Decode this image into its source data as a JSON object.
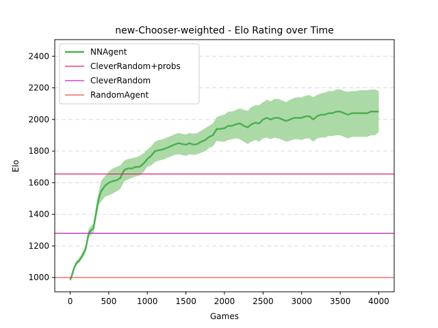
{
  "chart_data": {
    "type": "line",
    "title": "new-Chooser-weighted - Elo Rating over Time",
    "xlabel": "Games",
    "ylabel": "Elo",
    "xlim": [
      -200,
      4200
    ],
    "ylim": [
      910,
      2505
    ],
    "xticks": [
      0,
      500,
      1000,
      1500,
      2000,
      2500,
      3000,
      3500,
      4000
    ],
    "yticks": [
      1000,
      1200,
      1400,
      1600,
      1800,
      2000,
      2200,
      2400
    ],
    "grid": {
      "y": true,
      "x": false,
      "style": "dashed"
    },
    "legend_position": "top-left",
    "series": [
      {
        "name": "NNAgent",
        "color": "#4caf50",
        "band_color": "#a8d8a2",
        "x": [
          0,
          20,
          50,
          80,
          120,
          160,
          200,
          240,
          270,
          300,
          340,
          370,
          400,
          450,
          500,
          550,
          600,
          650,
          700,
          750,
          800,
          850,
          900,
          950,
          1000,
          1050,
          1100,
          1150,
          1200,
          1250,
          1300,
          1350,
          1400,
          1450,
          1500,
          1550,
          1600,
          1650,
          1700,
          1750,
          1800,
          1850,
          1900,
          1950,
          2000,
          2050,
          2100,
          2150,
          2200,
          2250,
          2300,
          2350,
          2400,
          2450,
          2500,
          2550,
          2600,
          2650,
          2700,
          2750,
          2800,
          2850,
          2900,
          2950,
          3000,
          3050,
          3100,
          3150,
          3200,
          3250,
          3300,
          3350,
          3400,
          3450,
          3500,
          3550,
          3600,
          3650,
          3700,
          3750,
          3800,
          3850,
          3900,
          3950,
          4000
        ],
        "y": [
          985,
          1010,
          1060,
          1090,
          1110,
          1140,
          1180,
          1280,
          1300,
          1310,
          1420,
          1500,
          1545,
          1580,
          1600,
          1610,
          1615,
          1630,
          1680,
          1690,
          1690,
          1700,
          1700,
          1720,
          1750,
          1770,
          1800,
          1805,
          1810,
          1820,
          1830,
          1840,
          1850,
          1845,
          1840,
          1850,
          1840,
          1845,
          1860,
          1870,
          1890,
          1900,
          1940,
          1940,
          1945,
          1960,
          1960,
          1970,
          1975,
          1960,
          1950,
          1970,
          1980,
          1975,
          2000,
          2010,
          2000,
          2010,
          2010,
          2000,
          1990,
          2000,
          2010,
          2010,
          2010,
          2020,
          2020,
          2000,
          2020,
          2030,
          2030,
          2040,
          2040,
          2050,
          2050,
          2040,
          2030,
          2040,
          2040,
          2040,
          2040,
          2040,
          2050,
          2050,
          2050
        ],
        "lower": [
          975,
          995,
          1050,
          1080,
          1095,
          1125,
          1160,
          1250,
          1270,
          1280,
          1380,
          1460,
          1480,
          1510,
          1520,
          1530,
          1545,
          1560,
          1610,
          1620,
          1630,
          1640,
          1645,
          1665,
          1700,
          1710,
          1730,
          1740,
          1745,
          1755,
          1765,
          1775,
          1780,
          1775,
          1770,
          1780,
          1775,
          1780,
          1790,
          1800,
          1820,
          1830,
          1865,
          1860,
          1860,
          1870,
          1875,
          1880,
          1875,
          1860,
          1845,
          1860,
          1870,
          1860,
          1880,
          1885,
          1875,
          1885,
          1880,
          1870,
          1860,
          1865,
          1875,
          1875,
          1870,
          1880,
          1880,
          1860,
          1880,
          1885,
          1885,
          1895,
          1895,
          1900,
          1900,
          1890,
          1880,
          1890,
          1890,
          1890,
          1890,
          1890,
          1900,
          1900,
          1920
        ],
        "upper": [
          1000,
          1030,
          1075,
          1105,
          1125,
          1160,
          1200,
          1310,
          1325,
          1340,
          1465,
          1545,
          1610,
          1640,
          1670,
          1690,
          1700,
          1710,
          1740,
          1750,
          1755,
          1760,
          1770,
          1785,
          1810,
          1830,
          1860,
          1870,
          1875,
          1885,
          1895,
          1905,
          1915,
          1910,
          1905,
          1915,
          1910,
          1915,
          1930,
          1945,
          1960,
          1975,
          2015,
          2025,
          2030,
          2050,
          2050,
          2060,
          2070,
          2060,
          2055,
          2080,
          2090,
          2090,
          2110,
          2125,
          2115,
          2130,
          2130,
          2120,
          2110,
          2125,
          2135,
          2140,
          2140,
          2150,
          2155,
          2140,
          2155,
          2165,
          2170,
          2180,
          2180,
          2190,
          2190,
          2180,
          2175,
          2180,
          2180,
          2185,
          2185,
          2185,
          2190,
          2190,
          2180
        ]
      },
      {
        "name": "CleverRandom+probs",
        "color": "#e6196e",
        "hline": 1655
      },
      {
        "name": "CleverRandom",
        "color": "#c020c0",
        "hline": 1280
      },
      {
        "name": "RandomAgent",
        "color": "#f04a3c",
        "hline": 1000
      }
    ]
  }
}
